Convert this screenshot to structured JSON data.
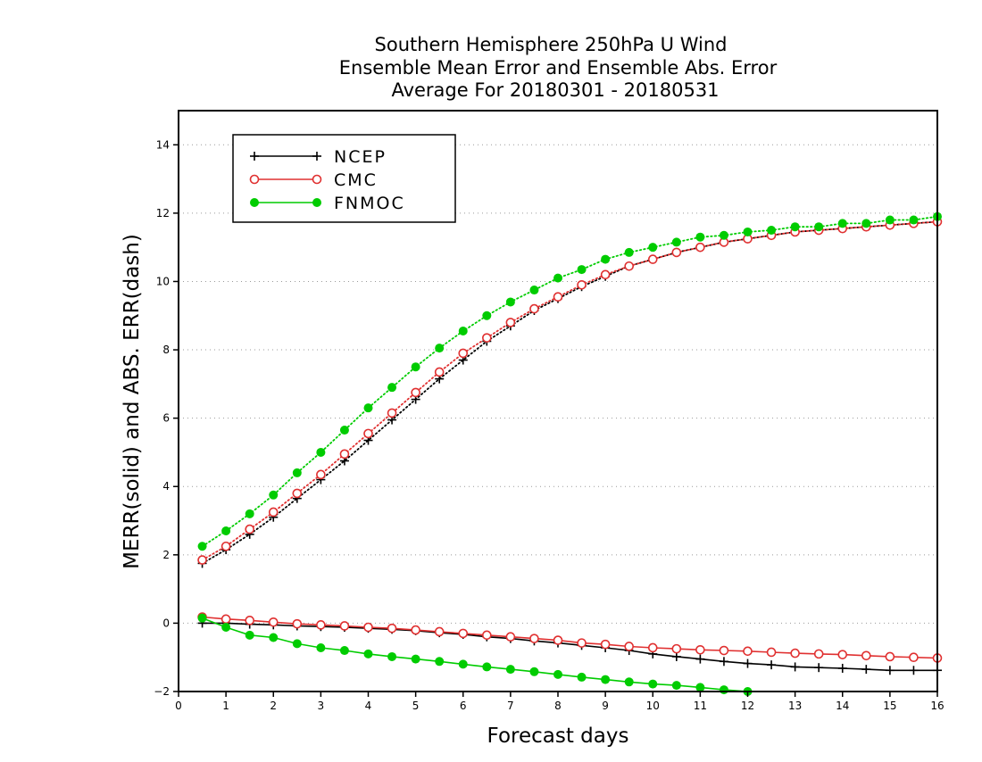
{
  "chart_data": {
    "type": "line",
    "title": [
      "Southern Hemisphere 250hPa U Wind",
      "Ensemble Mean Error and Ensemble Abs. Error",
      "Average For 20180301 - 20180531"
    ],
    "xlabel": "Forecast days",
    "ylabel": "MERR(solid) and ABS. ERR(dash)",
    "xlim": [
      0,
      16
    ],
    "ylim": [
      -2,
      15
    ],
    "xticks": [
      0,
      1,
      2,
      3,
      4,
      5,
      6,
      7,
      8,
      9,
      10,
      11,
      12,
      13,
      14,
      15,
      16
    ],
    "yticks": [
      -2,
      0,
      2,
      4,
      6,
      8,
      10,
      12,
      14
    ],
    "grid": "horizontal dotted",
    "legend_position": "top-left",
    "x": [
      0.5,
      1,
      1.5,
      2,
      2.5,
      3,
      3.5,
      4,
      4.5,
      5,
      5.5,
      6,
      6.5,
      7,
      7.5,
      8,
      8.5,
      9,
      9.5,
      10,
      10.5,
      11,
      11.5,
      12,
      12.5,
      13,
      13.5,
      14,
      14.5,
      15,
      15.5,
      16
    ],
    "series": [
      {
        "name": "NCEP",
        "color": "#000000",
        "marker": "plus",
        "abs_error": [
          1.75,
          2.15,
          2.6,
          3.1,
          3.65,
          4.2,
          4.75,
          5.35,
          5.95,
          6.55,
          7.15,
          7.7,
          8.25,
          8.7,
          9.15,
          9.5,
          9.85,
          10.15,
          10.45,
          10.65,
          10.85,
          11.0,
          11.15,
          11.25,
          11.35,
          11.45,
          11.5,
          11.55,
          11.6,
          11.65,
          11.7,
          11.75
        ],
        "mean_error": [
          0.0,
          0.0,
          -0.03,
          -0.05,
          -0.08,
          -0.1,
          -0.12,
          -0.15,
          -0.18,
          -0.22,
          -0.28,
          -0.33,
          -0.4,
          -0.45,
          -0.52,
          -0.58,
          -0.65,
          -0.72,
          -0.8,
          -0.9,
          -0.98,
          -1.05,
          -1.12,
          -1.18,
          -1.22,
          -1.28,
          -1.3,
          -1.32,
          -1.35,
          -1.38,
          -1.38,
          -1.38
        ]
      },
      {
        "name": "CMC",
        "color": "#e03030",
        "marker": "open-circle",
        "abs_error": [
          1.85,
          2.25,
          2.75,
          3.25,
          3.8,
          4.35,
          4.95,
          5.55,
          6.15,
          6.75,
          7.35,
          7.9,
          8.35,
          8.8,
          9.2,
          9.55,
          9.9,
          10.2,
          10.45,
          10.65,
          10.85,
          11.0,
          11.15,
          11.25,
          11.35,
          11.45,
          11.5,
          11.55,
          11.6,
          11.65,
          11.7,
          11.75
        ],
        "mean_error": [
          0.18,
          0.12,
          0.08,
          0.03,
          -0.02,
          -0.05,
          -0.08,
          -0.12,
          -0.15,
          -0.2,
          -0.25,
          -0.3,
          -0.35,
          -0.4,
          -0.45,
          -0.5,
          -0.58,
          -0.62,
          -0.68,
          -0.72,
          -0.75,
          -0.78,
          -0.8,
          -0.82,
          -0.85,
          -0.88,
          -0.9,
          -0.92,
          -0.95,
          -0.98,
          -1.0,
          -1.02
        ]
      },
      {
        "name": "FNMOC",
        "color": "#00cc00",
        "marker": "filled-circle",
        "abs_error": [
          2.25,
          2.7,
          3.2,
          3.75,
          4.4,
          5.0,
          5.65,
          6.3,
          6.9,
          7.5,
          8.05,
          8.55,
          9.0,
          9.4,
          9.75,
          10.1,
          10.35,
          10.65,
          10.85,
          11.0,
          11.15,
          11.3,
          11.35,
          11.45,
          11.5,
          11.6,
          11.6,
          11.7,
          11.7,
          11.8,
          11.8,
          11.9
        ],
        "mean_error": [
          0.15,
          -0.12,
          -0.35,
          -0.42,
          -0.6,
          -0.72,
          -0.8,
          -0.9,
          -0.98,
          -1.05,
          -1.12,
          -1.2,
          -1.28,
          -1.35,
          -1.42,
          -1.5,
          -1.58,
          -1.65,
          -1.72,
          -1.78,
          -1.82,
          -1.88,
          -1.95,
          -2.0
        ]
      }
    ]
  }
}
